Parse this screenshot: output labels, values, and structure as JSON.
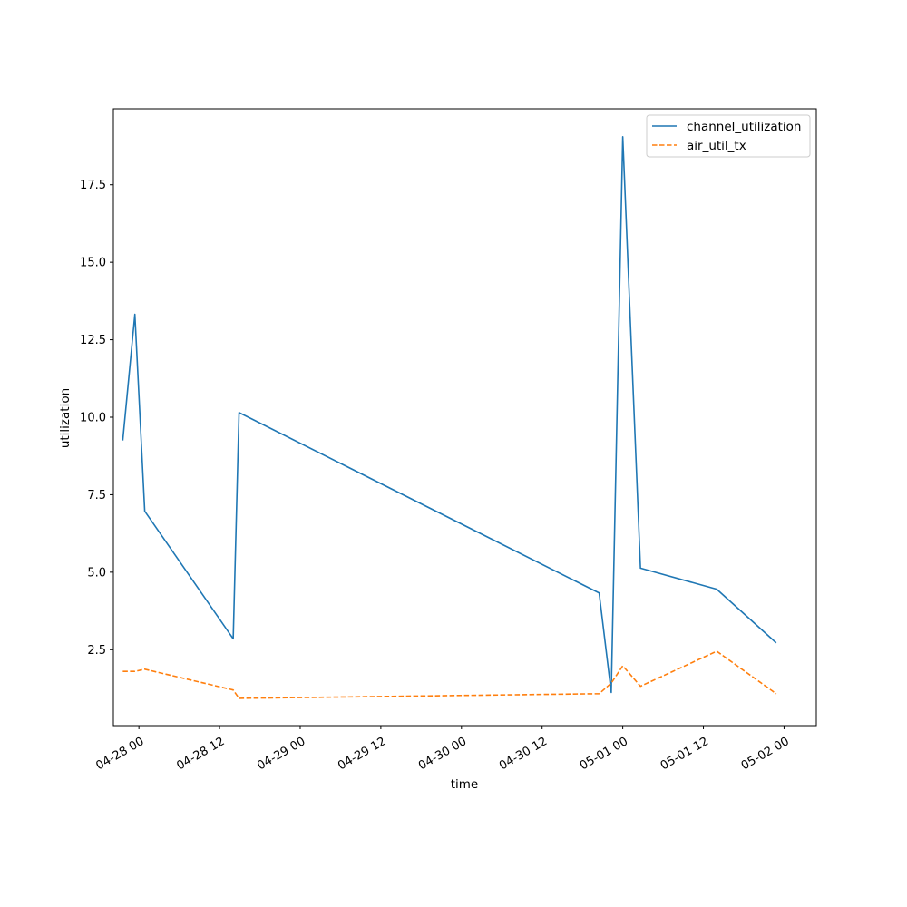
{
  "chart_data": {
    "type": "line",
    "title": "",
    "xlabel": "time",
    "ylabel": "utilization",
    "x_ticks": [
      "04-28 00",
      "04-28 12",
      "04-29 00",
      "04-29 12",
      "04-30 00",
      "04-30 12",
      "05-01 00",
      "05-01 12",
      "05-02 00"
    ],
    "y_ticks": [
      "2.5",
      "5.0",
      "7.5",
      "10.0",
      "12.5",
      "15.0",
      "17.5"
    ],
    "xlim": [
      "2026-04-27T20:12",
      "2026-05-02T04:48"
    ],
    "ylim": [
      0.05,
      19.95
    ],
    "grid": false,
    "legend": "top-right",
    "series": [
      {
        "name": "channel_utilization",
        "color": "#1f77b4",
        "style": "solid",
        "points": [
          {
            "x": "2026-04-27T21:36",
            "y": 9.25
          },
          {
            "x": "2026-04-27T23:24",
            "y": 13.32
          },
          {
            "x": "2026-04-28T00:52",
            "y": 6.97
          },
          {
            "x": "2026-04-28T14:02",
            "y": 2.85
          },
          {
            "x": "2026-04-28T14:54",
            "y": 10.15
          },
          {
            "x": "2026-04-30T20:29",
            "y": 4.33
          },
          {
            "x": "2026-04-30T22:17",
            "y": 1.12
          },
          {
            "x": "2026-05-01T00:00",
            "y": 19.05
          },
          {
            "x": "2026-05-01T02:38",
            "y": 5.13
          },
          {
            "x": "2026-05-01T13:59",
            "y": 4.45
          },
          {
            "x": "2026-05-01T22:50",
            "y": 2.72
          }
        ]
      },
      {
        "name": "air_util_tx",
        "color": "#ff7f0e",
        "style": "dashed",
        "points": [
          {
            "x": "2026-04-27T21:36",
            "y": 1.8
          },
          {
            "x": "2026-04-27T23:24",
            "y": 1.8
          },
          {
            "x": "2026-04-28T00:52",
            "y": 1.87
          },
          {
            "x": "2026-04-28T14:02",
            "y": 1.2
          },
          {
            "x": "2026-04-28T14:54",
            "y": 0.93
          },
          {
            "x": "2026-04-30T20:29",
            "y": 1.08
          },
          {
            "x": "2026-04-30T22:17",
            "y": 1.42
          },
          {
            "x": "2026-05-01T00:00",
            "y": 1.98
          },
          {
            "x": "2026-05-01T02:38",
            "y": 1.32
          },
          {
            "x": "2026-05-01T13:59",
            "y": 2.45
          },
          {
            "x": "2026-05-01T22:50",
            "y": 1.08
          }
        ]
      }
    ]
  }
}
